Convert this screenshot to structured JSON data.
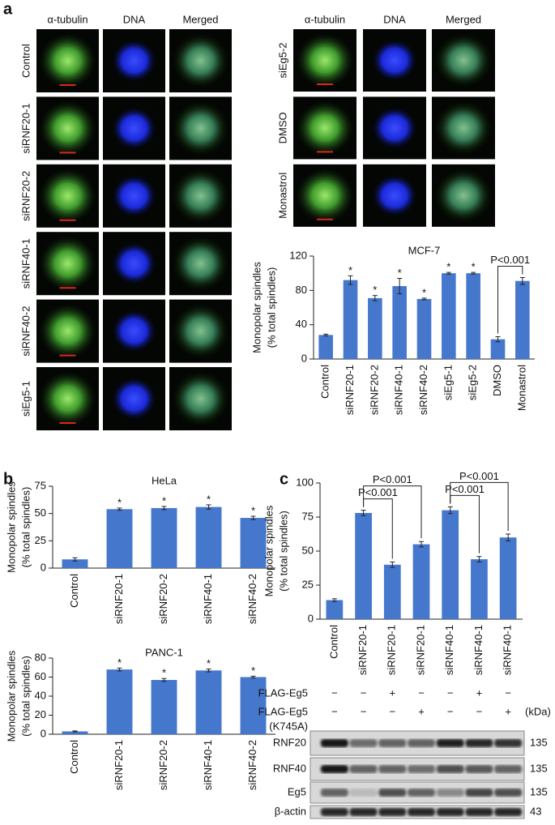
{
  "panel_labels": [
    "a",
    "b",
    "c"
  ],
  "microscopy": {
    "columns": [
      "α-tubulin",
      "DNA",
      "Merged"
    ],
    "left_rows": [
      "Control",
      "siRNF20-1",
      "siRNF20-2",
      "siRNF40-1",
      "siRNF40-2",
      "siEg5-1"
    ],
    "right_rows": [
      "siEg5-2",
      "DMSO",
      "Monastrol"
    ]
  },
  "chart_data": [
    {
      "type": "bar",
      "title": "MCF-7",
      "ylabel": [
        "Monopolar spindles",
        "(% total spindles)"
      ],
      "categories": [
        "Control",
        "siRNF20-1",
        "siRNF20-2",
        "siRNF40-1",
        "siRNF40-2",
        "siEg5-1",
        "siEg5-2",
        "DMSO",
        "Monastrol"
      ],
      "values": [
        28,
        92,
        71,
        85,
        70,
        100,
        100,
        23,
        91
      ],
      "errors": [
        1,
        5,
        3,
        9,
        1,
        1,
        1,
        3,
        4
      ],
      "markers": [
        null,
        "*",
        "*",
        "*",
        "*",
        "*",
        "*",
        null,
        null
      ],
      "brackets": [
        {
          "from": 7,
          "to": 8,
          "label": "P<0.001"
        }
      ],
      "color": "#4577cc",
      "ylim": [
        0,
        120
      ],
      "yticks": [
        0,
        40,
        80,
        120
      ]
    },
    {
      "type": "bar",
      "title": "HeLa",
      "ylabel": [
        "Monopolar spindles",
        "(% total spindles)"
      ],
      "categories": [
        "Control",
        "siRNF20-1",
        "siRNF20-2",
        "siRNF40-1",
        "siRNF40-2"
      ],
      "values": [
        8,
        54,
        55,
        56,
        46
      ],
      "errors": [
        1.5,
        1,
        1.5,
        2,
        1.5
      ],
      "markers": [
        null,
        "*",
        "*",
        "*",
        "*"
      ],
      "color": "#4577cc",
      "ylim": [
        0,
        75
      ],
      "yticks": [
        0,
        25,
        50,
        75
      ]
    },
    {
      "type": "bar",
      "title": "PANC-1",
      "ylabel": [
        "Monopolar spindles",
        "(% total spindles)"
      ],
      "categories": [
        "Control",
        "siRNF20-1",
        "siRNF20-2",
        "siRNF40-1",
        "siRNF40-2"
      ],
      "values": [
        3,
        68,
        57,
        67,
        60
      ],
      "errors": [
        0.5,
        1.5,
        1.5,
        1.5,
        1
      ],
      "markers": [
        null,
        "*",
        "*",
        "*",
        "*"
      ],
      "color": "#4577cc",
      "ylim": [
        0,
        80
      ],
      "yticks": [
        0,
        20,
        40,
        60,
        80
      ]
    },
    {
      "type": "bar",
      "ylabel": [
        "Monopolar spindles",
        "(% total spindles)"
      ],
      "categories": [
        "Control",
        "siRNF20-1",
        "siRNF20-1",
        "siRNF20-1",
        "siRNF40-1",
        "siRNF40-1",
        "siRNF40-1"
      ],
      "values": [
        14,
        78,
        40,
        55,
        80,
        44,
        60
      ],
      "errors": [
        1,
        2,
        2,
        2,
        2.5,
        2,
        2.5
      ],
      "brackets": [
        {
          "from": 1,
          "to": 2,
          "label": "P<0.001"
        },
        {
          "from": 1,
          "to": 3,
          "label": "P<0.001"
        },
        {
          "from": 4,
          "to": 5,
          "label": "P<0.001"
        },
        {
          "from": 4,
          "to": 6,
          "label": "P<0.001"
        }
      ],
      "color": "#4577cc",
      "ylim": [
        0,
        100
      ],
      "yticks": [
        0,
        25,
        50,
        75,
        100
      ]
    }
  ],
  "blot": {
    "unit": "(kDa)",
    "conditions": [
      {
        "label": [
          "FLAG-Eg5"
        ],
        "signs": [
          "−",
          "−",
          "+",
          "−",
          "−",
          "+",
          "−"
        ]
      },
      {
        "label": [
          "FLAG-Eg5",
          "(K745A)"
        ],
        "signs": [
          "−",
          "−",
          "−",
          "+",
          "−",
          "−",
          "+"
        ]
      }
    ],
    "bands": [
      {
        "label": "RNF20",
        "kda": 135
      },
      {
        "label": "RNF40",
        "kda": 135
      },
      {
        "label": "Eg5",
        "kda": 135
      },
      {
        "label": "β-actin",
        "kda": 43
      }
    ]
  }
}
